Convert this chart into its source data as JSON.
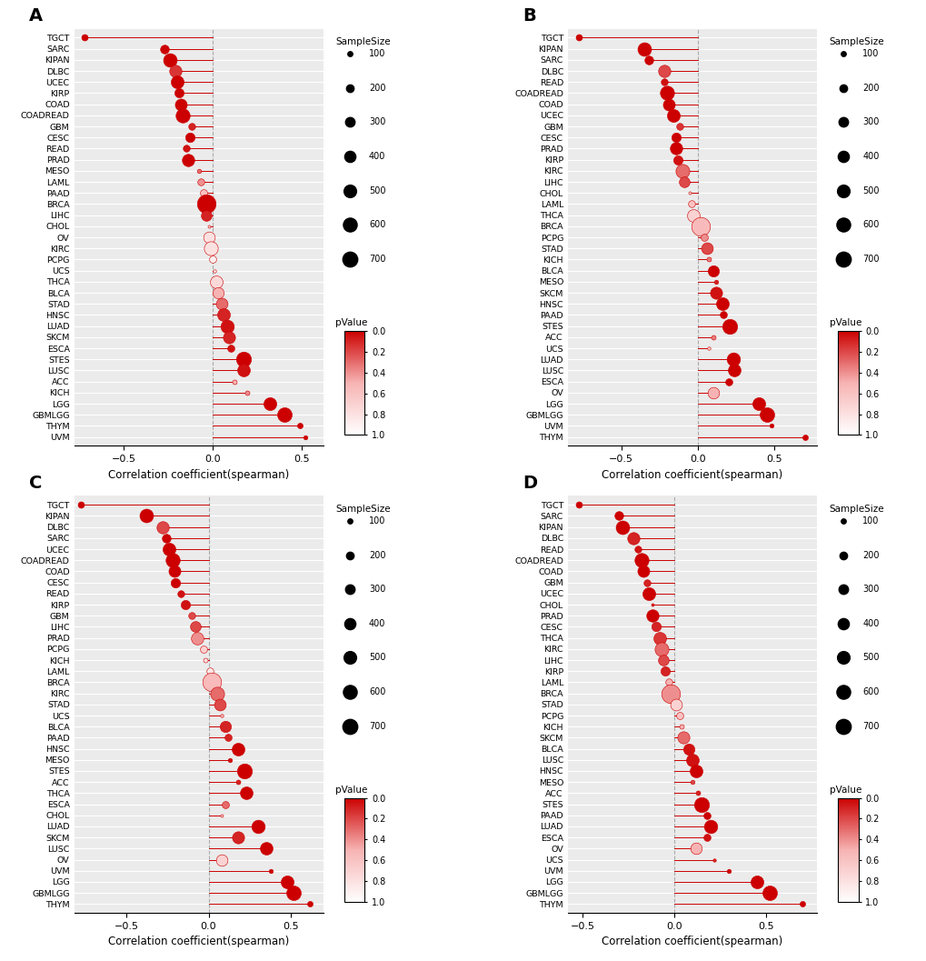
{
  "panels": {
    "A": {
      "label": "A",
      "categories": [
        "TGCT",
        "SARC",
        "KIPAN",
        "DLBC",
        "UCEC",
        "KIRP",
        "COAD",
        "COADREAD",
        "GBM",
        "CESC",
        "READ",
        "PRAD",
        "MESO",
        "LAML",
        "PAAD",
        "BRCA",
        "LIHC",
        "CHOL",
        "OV",
        "KIRC",
        "PCPG",
        "UCS",
        "THCA",
        "BLCA",
        "STAD",
        "HNSC",
        "LUAD",
        "SKCM",
        "ESCA",
        "STES",
        "LUSC",
        "ACC",
        "KICH",
        "LGG",
        "GBMLGG",
        "THYM",
        "UVM"
      ],
      "corr": [
        -0.72,
        -0.27,
        -0.24,
        -0.21,
        -0.2,
        -0.19,
        -0.18,
        -0.17,
        -0.12,
        -0.13,
        -0.15,
        -0.14,
        -0.08,
        -0.07,
        -0.055,
        -0.04,
        -0.04,
        -0.02,
        -0.02,
        -0.01,
        0.0,
        0.01,
        0.02,
        0.03,
        0.05,
        0.06,
        0.08,
        0.09,
        0.1,
        0.17,
        0.17,
        0.12,
        0.19,
        0.32,
        0.4,
        0.49,
        0.52
      ],
      "pvalue": [
        0.0,
        0.0,
        0.0,
        0.15,
        0.0,
        0.0,
        0.0,
        0.0,
        0.1,
        0.0,
        0.05,
        0.0,
        0.3,
        0.4,
        0.6,
        0.0,
        0.1,
        0.7,
        0.8,
        0.8,
        0.9,
        0.85,
        0.75,
        0.5,
        0.3,
        0.1,
        0.05,
        0.1,
        0.05,
        0.0,
        0.05,
        0.5,
        0.4,
        0.0,
        0.0,
        0.0,
        0.0
      ],
      "size": [
        150,
        260,
        590,
        480,
        530,
        290,
        460,
        630,
        170,
        300,
        170,
        490,
        80,
        170,
        180,
        1090,
        370,
        50,
        430,
        610,
        180,
        57,
        510,
        410,
        440,
        520,
        570,
        470,
        180,
        710,
        510,
        90,
        90,
        530,
        670,
        120,
        80
      ]
    },
    "B": {
      "label": "B",
      "categories": [
        "TGCT",
        "KIPAN",
        "SARC",
        "DLBC",
        "READ",
        "COADREAD",
        "COAD",
        "UCEC",
        "GBM",
        "CESC",
        "PRAD",
        "KIRP",
        "KIRC",
        "LIHC",
        "CHOL",
        "LAML",
        "THCA",
        "BRCA",
        "PCPG",
        "STAD",
        "KICH",
        "BLCA",
        "MESO",
        "SKCM",
        "HNSC",
        "PAAD",
        "STES",
        "ACC",
        "UCS",
        "LUAD",
        "LUSC",
        "ESCA",
        "OV",
        "LGG",
        "GBMLGG",
        "UVM",
        "THYM"
      ],
      "corr": [
        -0.78,
        -0.35,
        -0.32,
        -0.22,
        -0.22,
        -0.2,
        -0.19,
        -0.16,
        -0.12,
        -0.14,
        -0.14,
        -0.13,
        -0.1,
        -0.09,
        -0.05,
        -0.04,
        -0.03,
        0.02,
        0.04,
        0.06,
        0.07,
        0.1,
        0.12,
        0.12,
        0.16,
        0.17,
        0.21,
        0.1,
        0.07,
        0.23,
        0.24,
        0.2,
        0.1,
        0.4,
        0.45,
        0.48,
        0.7
      ],
      "pvalue": [
        0.0,
        0.0,
        0.0,
        0.2,
        0.05,
        0.0,
        0.0,
        0.0,
        0.15,
        0.0,
        0.0,
        0.05,
        0.3,
        0.2,
        0.7,
        0.6,
        0.7,
        0.55,
        0.4,
        0.2,
        0.35,
        0.0,
        0.1,
        0.05,
        0.0,
        0.0,
        0.0,
        0.35,
        0.65,
        0.0,
        0.0,
        0.0,
        0.5,
        0.0,
        0.0,
        0.0,
        0.0
      ],
      "size": [
        150,
        590,
        260,
        480,
        170,
        630,
        460,
        530,
        170,
        300,
        490,
        290,
        610,
        370,
        50,
        170,
        510,
        1090,
        180,
        440,
        90,
        410,
        80,
        470,
        520,
        180,
        710,
        90,
        57,
        570,
        510,
        180,
        430,
        530,
        670,
        80,
        120
      ]
    },
    "C": {
      "label": "C",
      "categories": [
        "TGCT",
        "KIPAN",
        "DLBC",
        "SARC",
        "UCEC",
        "COADREAD",
        "COAD",
        "CESC",
        "READ",
        "KIRP",
        "GBM",
        "LIHC",
        "PRAD",
        "PCPG",
        "KICH",
        "LAML",
        "BRCA",
        "KIRC",
        "STAD",
        "UCS",
        "BLCA",
        "PAAD",
        "HNSC",
        "MESO",
        "STES",
        "ACC",
        "THCA",
        "ESCA",
        "CHOL",
        "LUAD",
        "SKCM",
        "LUSC",
        "OV",
        "UVM",
        "LGG",
        "GBMLGG",
        "THYM"
      ],
      "corr": [
        -0.78,
        -0.38,
        -0.28,
        -0.26,
        -0.24,
        -0.22,
        -0.21,
        -0.2,
        -0.17,
        -0.14,
        -0.1,
        -0.08,
        -0.07,
        -0.03,
        -0.02,
        0.01,
        0.02,
        0.05,
        0.07,
        0.08,
        0.1,
        0.12,
        0.18,
        0.13,
        0.22,
        0.18,
        0.23,
        0.1,
        0.08,
        0.3,
        0.18,
        0.35,
        0.08,
        0.38,
        0.48,
        0.52,
        0.62
      ],
      "pvalue": [
        0.0,
        0.0,
        0.2,
        0.0,
        0.0,
        0.0,
        0.0,
        0.0,
        0.05,
        0.05,
        0.2,
        0.2,
        0.4,
        0.7,
        0.8,
        0.85,
        0.55,
        0.3,
        0.2,
        0.55,
        0.1,
        0.1,
        0.0,
        0.05,
        0.0,
        0.1,
        0.0,
        0.3,
        0.65,
        0.0,
        0.1,
        0.0,
        0.7,
        0.0,
        0.0,
        0.0,
        0.0
      ],
      "size": [
        150,
        590,
        480,
        260,
        530,
        630,
        460,
        300,
        170,
        290,
        170,
        370,
        490,
        180,
        90,
        170,
        1090,
        610,
        440,
        57,
        410,
        180,
        520,
        80,
        710,
        90,
        510,
        180,
        50,
        570,
        470,
        510,
        430,
        80,
        530,
        670,
        120
      ]
    },
    "D": {
      "label": "D",
      "categories": [
        "TGCT",
        "SARC",
        "KIPAN",
        "DLBC",
        "READ",
        "COADREAD",
        "COAD",
        "GBM",
        "UCEC",
        "CHOL",
        "PRAD",
        "CESC",
        "THCA",
        "KIRC",
        "LIHC",
        "KIRP",
        "LAML",
        "BRCA",
        "STAD",
        "PCPG",
        "KICH",
        "SKCM",
        "BLCA",
        "LUSC",
        "HNSC",
        "MESO",
        "ACC",
        "STES",
        "PAAD",
        "LUAD",
        "ESCA",
        "OV",
        "UCS",
        "UVM",
        "LGG",
        "GBMLGG",
        "THYM"
      ],
      "corr": [
        -0.52,
        -0.3,
        -0.28,
        -0.22,
        -0.2,
        -0.18,
        -0.17,
        -0.15,
        -0.14,
        -0.12,
        -0.12,
        -0.1,
        -0.08,
        -0.07,
        -0.06,
        -0.05,
        -0.03,
        -0.02,
        0.01,
        0.03,
        0.04,
        0.05,
        0.08,
        0.1,
        0.12,
        0.1,
        0.13,
        0.15,
        0.18,
        0.2,
        0.18,
        0.12,
        0.22,
        0.3,
        0.45,
        0.52,
        0.7
      ],
      "pvalue": [
        0.0,
        0.0,
        0.0,
        0.1,
        0.05,
        0.0,
        0.0,
        0.1,
        0.0,
        0.1,
        0.0,
        0.1,
        0.15,
        0.3,
        0.2,
        0.1,
        0.5,
        0.4,
        0.7,
        0.6,
        0.5,
        0.3,
        0.05,
        0.05,
        0.0,
        0.2,
        0.1,
        0.0,
        0.0,
        0.0,
        0.05,
        0.5,
        0.1,
        0.0,
        0.0,
        0.0,
        0.0
      ],
      "size": [
        150,
        260,
        590,
        480,
        170,
        630,
        460,
        170,
        530,
        50,
        490,
        300,
        510,
        610,
        370,
        290,
        170,
        1090,
        440,
        180,
        90,
        470,
        410,
        510,
        520,
        80,
        90,
        710,
        180,
        570,
        180,
        430,
        57,
        80,
        530,
        670,
        120
      ]
    }
  },
  "xlim_A": [
    -0.78,
    0.6
  ],
  "xlim_B": [
    -0.85,
    0.78
  ],
  "xlim_C": [
    -0.82,
    0.7
  ],
  "xlim_D": [
    -0.58,
    0.78
  ],
  "xticks_A": [
    -0.5,
    0.0,
    0.5
  ],
  "xticks_B": [
    -0.5,
    0.0,
    0.5
  ],
  "xticks_C": [
    -0.5,
    0.0,
    0.5
  ],
  "xticks_D": [
    -0.5,
    0.0,
    0.5
  ],
  "xlabel": "Correlation coefficient(spearman)",
  "background_color": "#ebebeb",
  "grid_color": "white",
  "size_legend_values": [
    100,
    200,
    300,
    400,
    500,
    600,
    700
  ],
  "line_color": "#cc0000"
}
